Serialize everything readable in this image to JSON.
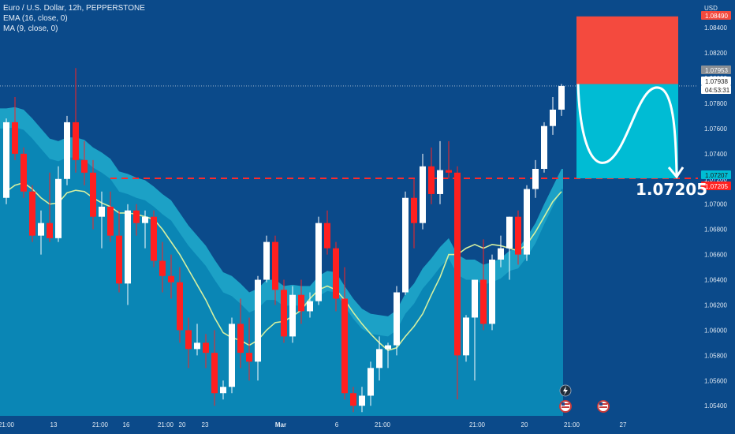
{
  "legend": {
    "symbol": "Euro / U.S. Dollar, 12h, PEPPERSTONE",
    "ema": "EMA (16, close, 0)",
    "ma": "MA (9, close, 0)"
  },
  "currency_label": "USD",
  "annotation": "1.07205",
  "colors": {
    "background_top": "#0b4a8a",
    "fill_area": "#0a86b5",
    "band": "#20b0d0",
    "up": "#ffffff",
    "down": "#ff2020",
    "ma_line": "#d6f0a0",
    "stop_box": "#f44a3e",
    "target_box": "#00bcd4",
    "dashed_level": "#ff2a2a"
  },
  "chart_data": {
    "type": "candlestick",
    "title": "Euro / U.S. Dollar, 12h, PEPPERSTONE",
    "y_unit": "USD",
    "ylim": [
      1.0532,
      1.0857
    ],
    "y_ticks": [
      "1.08400",
      "1.08200",
      "1.08000",
      "1.07800",
      "1.07600",
      "1.07400",
      "1.07200",
      "1.07000",
      "1.06800",
      "1.06600",
      "1.06400",
      "1.06200",
      "1.06000",
      "1.05800",
      "1.05600",
      "1.05400"
    ],
    "x_ticks": [
      "21:00",
      "13",
      "21:00",
      "16",
      "21:00",
      "20",
      "23",
      "Mar",
      "6",
      "21:00",
      "21:00",
      "20",
      "21:00",
      "27"
    ],
    "price_tags": [
      {
        "label": "1.08490",
        "value": 1.0849,
        "kind": "stop"
      },
      {
        "label": "1.07953",
        "value": 1.07953,
        "kind": "high"
      },
      {
        "label": "1.07938",
        "value": 1.07938,
        "kind": "last"
      },
      {
        "label": "04:53:31",
        "value": 1.0786,
        "kind": "countdown"
      },
      {
        "label": "1.07207",
        "value": 1.07207,
        "kind": "level"
      },
      {
        "label": "1.07205",
        "value": 1.07205,
        "kind": "target"
      }
    ],
    "level": 1.07205,
    "stop_zone": [
      1.07953,
      1.0849
    ],
    "target_zone": [
      1.07205,
      1.07953
    ],
    "candles": [
      {
        "o": 1.0705,
        "h": 1.0768,
        "l": 1.07,
        "c": 1.0765
      },
      {
        "o": 1.0765,
        "h": 1.0785,
        "l": 1.0735,
        "c": 1.074
      },
      {
        "o": 1.074,
        "h": 1.0745,
        "l": 1.0705,
        "c": 1.071
      },
      {
        "o": 1.071,
        "h": 1.0715,
        "l": 1.067,
        "c": 1.0675
      },
      {
        "o": 1.0675,
        "h": 1.0695,
        "l": 1.066,
        "c": 1.0685
      },
      {
        "o": 1.0685,
        "h": 1.0725,
        "l": 1.067,
        "c": 1.0673
      },
      {
        "o": 1.0673,
        "h": 1.073,
        "l": 1.067,
        "c": 1.072
      },
      {
        "o": 1.072,
        "h": 1.077,
        "l": 1.0715,
        "c": 1.0765
      },
      {
        "o": 1.0765,
        "h": 1.0808,
        "l": 1.0725,
        "c": 1.0735
      },
      {
        "o": 1.0735,
        "h": 1.075,
        "l": 1.0715,
        "c": 1.0725
      },
      {
        "o": 1.0725,
        "h": 1.0735,
        "l": 1.068,
        "c": 1.069
      },
      {
        "o": 1.069,
        "h": 1.071,
        "l": 1.0665,
        "c": 1.0698
      },
      {
        "o": 1.0698,
        "h": 1.071,
        "l": 1.067,
        "c": 1.0675
      },
      {
        "o": 1.0675,
        "h": 1.0695,
        "l": 1.063,
        "c": 1.0637
      },
      {
        "o": 1.0637,
        "h": 1.07,
        "l": 1.062,
        "c": 1.0695
      },
      {
        "o": 1.0695,
        "h": 1.07,
        "l": 1.0675,
        "c": 1.0685
      },
      {
        "o": 1.0685,
        "h": 1.0695,
        "l": 1.0665,
        "c": 1.069
      },
      {
        "o": 1.069,
        "h": 1.0695,
        "l": 1.065,
        "c": 1.0655
      },
      {
        "o": 1.0655,
        "h": 1.067,
        "l": 1.063,
        "c": 1.0643
      },
      {
        "o": 1.0643,
        "h": 1.066,
        "l": 1.0625,
        "c": 1.0638
      },
      {
        "o": 1.0638,
        "h": 1.065,
        "l": 1.059,
        "c": 1.06
      },
      {
        "o": 1.06,
        "h": 1.061,
        "l": 1.057,
        "c": 1.0585
      },
      {
        "o": 1.0585,
        "h": 1.0605,
        "l": 1.058,
        "c": 1.059
      },
      {
        "o": 1.059,
        "h": 1.0597,
        "l": 1.057,
        "c": 1.0582
      },
      {
        "o": 1.0582,
        "h": 1.06,
        "l": 1.054,
        "c": 1.055
      },
      {
        "o": 1.055,
        "h": 1.056,
        "l": 1.0545,
        "c": 1.0555
      },
      {
        "o": 1.0555,
        "h": 1.061,
        "l": 1.055,
        "c": 1.0605
      },
      {
        "o": 1.0605,
        "h": 1.0625,
        "l": 1.057,
        "c": 1.0582
      },
      {
        "o": 1.0582,
        "h": 1.061,
        "l": 1.056,
        "c": 1.0575
      },
      {
        "o": 1.0575,
        "h": 1.0643,
        "l": 1.056,
        "c": 1.064
      },
      {
        "o": 1.064,
        "h": 1.0675,
        "l": 1.0638,
        "c": 1.067
      },
      {
        "o": 1.067,
        "h": 1.0675,
        "l": 1.062,
        "c": 1.0632
      },
      {
        "o": 1.0632,
        "h": 1.064,
        "l": 1.059,
        "c": 1.0595
      },
      {
        "o": 1.0595,
        "h": 1.0635,
        "l": 1.059,
        "c": 1.0628
      },
      {
        "o": 1.0628,
        "h": 1.064,
        "l": 1.0605,
        "c": 1.0615
      },
      {
        "o": 1.0615,
        "h": 1.063,
        "l": 1.061,
        "c": 1.0623
      },
      {
        "o": 1.0623,
        "h": 1.069,
        "l": 1.062,
        "c": 1.0685
      },
      {
        "o": 1.0685,
        "h": 1.0695,
        "l": 1.066,
        "c": 1.0665
      },
      {
        "o": 1.0665,
        "h": 1.067,
        "l": 1.0615,
        "c": 1.0625
      },
      {
        "o": 1.0625,
        "h": 1.065,
        "l": 1.0545,
        "c": 1.055
      },
      {
        "o": 1.055,
        "h": 1.0555,
        "l": 1.0535,
        "c": 1.054
      },
      {
        "o": 1.054,
        "h": 1.0555,
        "l": 1.0535,
        "c": 1.0548
      },
      {
        "o": 1.0548,
        "h": 1.0575,
        "l": 1.054,
        "c": 1.057
      },
      {
        "o": 1.057,
        "h": 1.0595,
        "l": 1.056,
        "c": 1.0585
      },
      {
        "o": 1.0585,
        "h": 1.059,
        "l": 1.057,
        "c": 1.0588
      },
      {
        "o": 1.0588,
        "h": 1.0635,
        "l": 1.058,
        "c": 1.063
      },
      {
        "o": 1.063,
        "h": 1.071,
        "l": 1.0628,
        "c": 1.0705
      },
      {
        "o": 1.0705,
        "h": 1.072,
        "l": 1.0665,
        "c": 1.0685
      },
      {
        "o": 1.0685,
        "h": 1.074,
        "l": 1.068,
        "c": 1.073
      },
      {
        "o": 1.073,
        "h": 1.0745,
        "l": 1.07,
        "c": 1.0708
      },
      {
        "o": 1.0708,
        "h": 1.075,
        "l": 1.07,
        "c": 1.0727
      },
      {
        "o": 1.0727,
        "h": 1.075,
        "l": 1.072,
        "c": 1.0725
      },
      {
        "o": 1.0725,
        "h": 1.073,
        "l": 1.0545,
        "c": 1.058
      },
      {
        "o": 1.058,
        "h": 1.0612,
        "l": 1.0575,
        "c": 1.061
      },
      {
        "o": 1.061,
        "h": 1.064,
        "l": 1.056,
        "c": 1.064
      },
      {
        "o": 1.064,
        "h": 1.0672,
        "l": 1.06,
        "c": 1.0605
      },
      {
        "o": 1.0605,
        "h": 1.066,
        "l": 1.06,
        "c": 1.0656
      },
      {
        "o": 1.0656,
        "h": 1.0675,
        "l": 1.065,
        "c": 1.0665
      },
      {
        "o": 1.0665,
        "h": 1.069,
        "l": 1.064,
        "c": 1.069
      },
      {
        "o": 1.069,
        "h": 1.0695,
        "l": 1.0652,
        "c": 1.066
      },
      {
        "o": 1.066,
        "h": 1.0715,
        "l": 1.0655,
        "c": 1.0712
      },
      {
        "o": 1.0712,
        "h": 1.0735,
        "l": 1.0705,
        "c": 1.0728
      },
      {
        "o": 1.0728,
        "h": 1.0765,
        "l": 1.0725,
        "c": 1.0762
      },
      {
        "o": 1.0762,
        "h": 1.0785,
        "l": 1.0755,
        "c": 1.0775
      },
      {
        "o": 1.0775,
        "h": 1.07953,
        "l": 1.077,
        "c": 1.07938
      }
    ],
    "ma": [
      1.071,
      1.0715,
      1.0717,
      1.0712,
      1.0705,
      1.07,
      1.0701,
      1.0709,
      1.0711,
      1.071,
      1.0705,
      1.0701,
      1.0698,
      1.0693,
      1.0693,
      1.0692,
      1.069,
      1.0688,
      1.068,
      1.067,
      1.066,
      1.0648,
      1.0636,
      1.0624,
      1.061,
      1.0598,
      1.0594,
      1.0592,
      1.0588,
      1.0592,
      1.06,
      1.0606,
      1.0607,
      1.0611,
      1.0616,
      1.0625,
      1.0632,
      1.0635,
      1.0632,
      1.0624,
      1.0614,
      1.0605,
      1.0597,
      1.059,
      1.0584,
      1.0586,
      1.0595,
      1.0603,
      1.0613,
      1.0628,
      1.0642,
      1.066,
      1.066,
      1.0665,
      1.0668,
      1.0665,
      1.0668,
      1.0667,
      1.0665,
      1.0663,
      1.0668,
      1.0678,
      1.069,
      1.0702,
      1.071
    ],
    "ema": [
      1.076,
      1.0761,
      1.0759,
      1.0752,
      1.0744,
      1.0736,
      1.0734,
      1.0737,
      1.0737,
      1.0735,
      1.0729,
      1.0725,
      1.072,
      1.071,
      1.0708,
      1.0705,
      1.0703,
      1.0698,
      1.0692,
      1.0687,
      1.0677,
      1.0667,
      1.0659,
      1.0651,
      1.064,
      1.063,
      1.0627,
      1.0621,
      1.0614,
      1.0617,
      1.0624,
      1.0624,
      1.0619,
      1.062,
      1.0619,
      1.0619,
      1.0627,
      1.0631,
      1.063,
      1.0619,
      1.0609,
      1.0601,
      1.0597,
      1.0596,
      1.0595,
      1.06,
      1.0613,
      1.0621,
      1.0633,
      1.0641,
      1.065,
      1.0657,
      1.0644,
      1.064,
      1.064,
      1.0636,
      1.0638,
      1.0641,
      1.0647,
      1.0649,
      1.0658,
      1.0669,
      1.0684,
      1.0698,
      1.0712
    ]
  }
}
